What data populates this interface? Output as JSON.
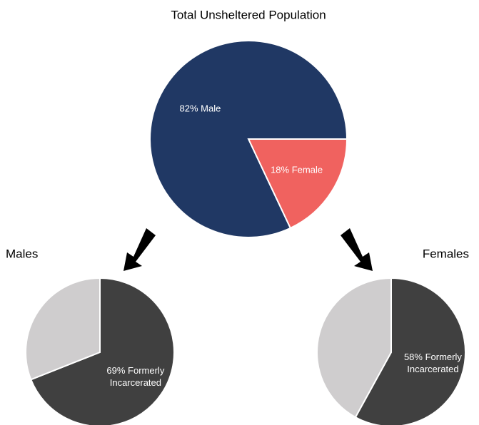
{
  "chart_data": [
    {
      "type": "pie",
      "title": "Total Unsheltered Population",
      "values": [
        18,
        82
      ],
      "value_labels": [
        "18% Female",
        "82% Male"
      ],
      "colors": [
        "#f0625f",
        "#203864"
      ]
    },
    {
      "type": "pie",
      "title": "Males",
      "values": [
        69,
        31
      ],
      "value_labels": [
        "69% Formerly Incarcerated",
        null
      ],
      "colors": [
        "#404040",
        "#cfcdce"
      ]
    },
    {
      "type": "pie",
      "title": "Females",
      "values": [
        58,
        42
      ],
      "value_labels": [
        "58% Formerly Incarcerated",
        null
      ],
      "colors": [
        "#404040",
        "#cfcdce"
      ]
    }
  ]
}
